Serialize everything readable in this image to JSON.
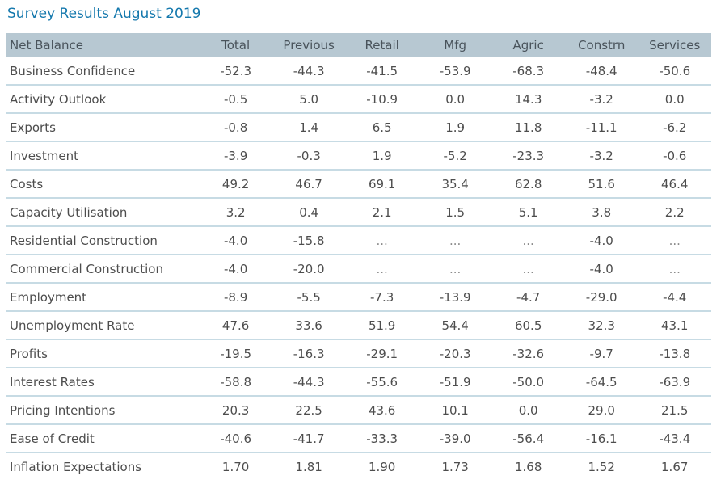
{
  "title": "Survey Results August 2019",
  "colors": {
    "title_text": "#1478ad",
    "header_background": "#b7c8d2",
    "row_divider": "#c7dbe4",
    "body_text": "#4d4d4d"
  },
  "chart_data": {
    "type": "table",
    "title": "Survey Results August 2019",
    "columns": [
      "Net Balance",
      "Total",
      "Previous",
      "Retail",
      "Mfg",
      "Agric",
      "Constrn",
      "Services"
    ],
    "rows": [
      {
        "label": "Business Confidence",
        "values": [
          "-52.3",
          "-44.3",
          "-41.5",
          "-53.9",
          "-68.3",
          "-48.4",
          "-50.6"
        ]
      },
      {
        "label": "Activity Outlook",
        "values": [
          "-0.5",
          "5.0",
          "-10.9",
          "0.0",
          "14.3",
          "-3.2",
          "0.0"
        ]
      },
      {
        "label": "Exports",
        "values": [
          "-0.8",
          "1.4",
          "6.5",
          "1.9",
          "11.8",
          "-11.1",
          "-6.2"
        ]
      },
      {
        "label": "Investment",
        "values": [
          "-3.9",
          "-0.3",
          "1.9",
          "-5.2",
          "-23.3",
          "-3.2",
          "-0.6"
        ]
      },
      {
        "label": "Costs",
        "values": [
          "49.2",
          "46.7",
          "69.1",
          "35.4",
          "62.8",
          "51.6",
          "46.4"
        ]
      },
      {
        "label": "Capacity Utilisation",
        "values": [
          "3.2",
          "0.4",
          "2.1",
          "1.5",
          "5.1",
          "3.8",
          "2.2"
        ]
      },
      {
        "label": "Residential Construction",
        "values": [
          "-4.0",
          "-15.8",
          "...",
          "...",
          "...",
          "-4.0",
          "..."
        ]
      },
      {
        "label": "Commercial Construction",
        "values": [
          "-4.0",
          "-20.0",
          "...",
          "...",
          "...",
          "-4.0",
          "..."
        ]
      },
      {
        "label": "Employment",
        "values": [
          "-8.9",
          "-5.5",
          "-7.3",
          "-13.9",
          "-4.7",
          "-29.0",
          "-4.4"
        ]
      },
      {
        "label": "Unemployment Rate",
        "values": [
          "47.6",
          "33.6",
          "51.9",
          "54.4",
          "60.5",
          "32.3",
          "43.1"
        ]
      },
      {
        "label": "Profits",
        "values": [
          "-19.5",
          "-16.3",
          "-29.1",
          "-20.3",
          "-32.6",
          "-9.7",
          "-13.8"
        ]
      },
      {
        "label": "Interest Rates",
        "values": [
          "-58.8",
          "-44.3",
          "-55.6",
          "-51.9",
          "-50.0",
          "-64.5",
          "-63.9"
        ]
      },
      {
        "label": "Pricing Intentions",
        "values": [
          "20.3",
          "22.5",
          "43.6",
          "10.1",
          "0.0",
          "29.0",
          "21.5"
        ]
      },
      {
        "label": "Ease of Credit",
        "values": [
          "-40.6",
          "-41.7",
          "-33.3",
          "-39.0",
          "-56.4",
          "-16.1",
          "-43.4"
        ]
      },
      {
        "label": "Inflation Expectations",
        "values": [
          "1.70",
          "1.81",
          "1.90",
          "1.73",
          "1.68",
          "1.52",
          "1.67"
        ]
      }
    ]
  }
}
